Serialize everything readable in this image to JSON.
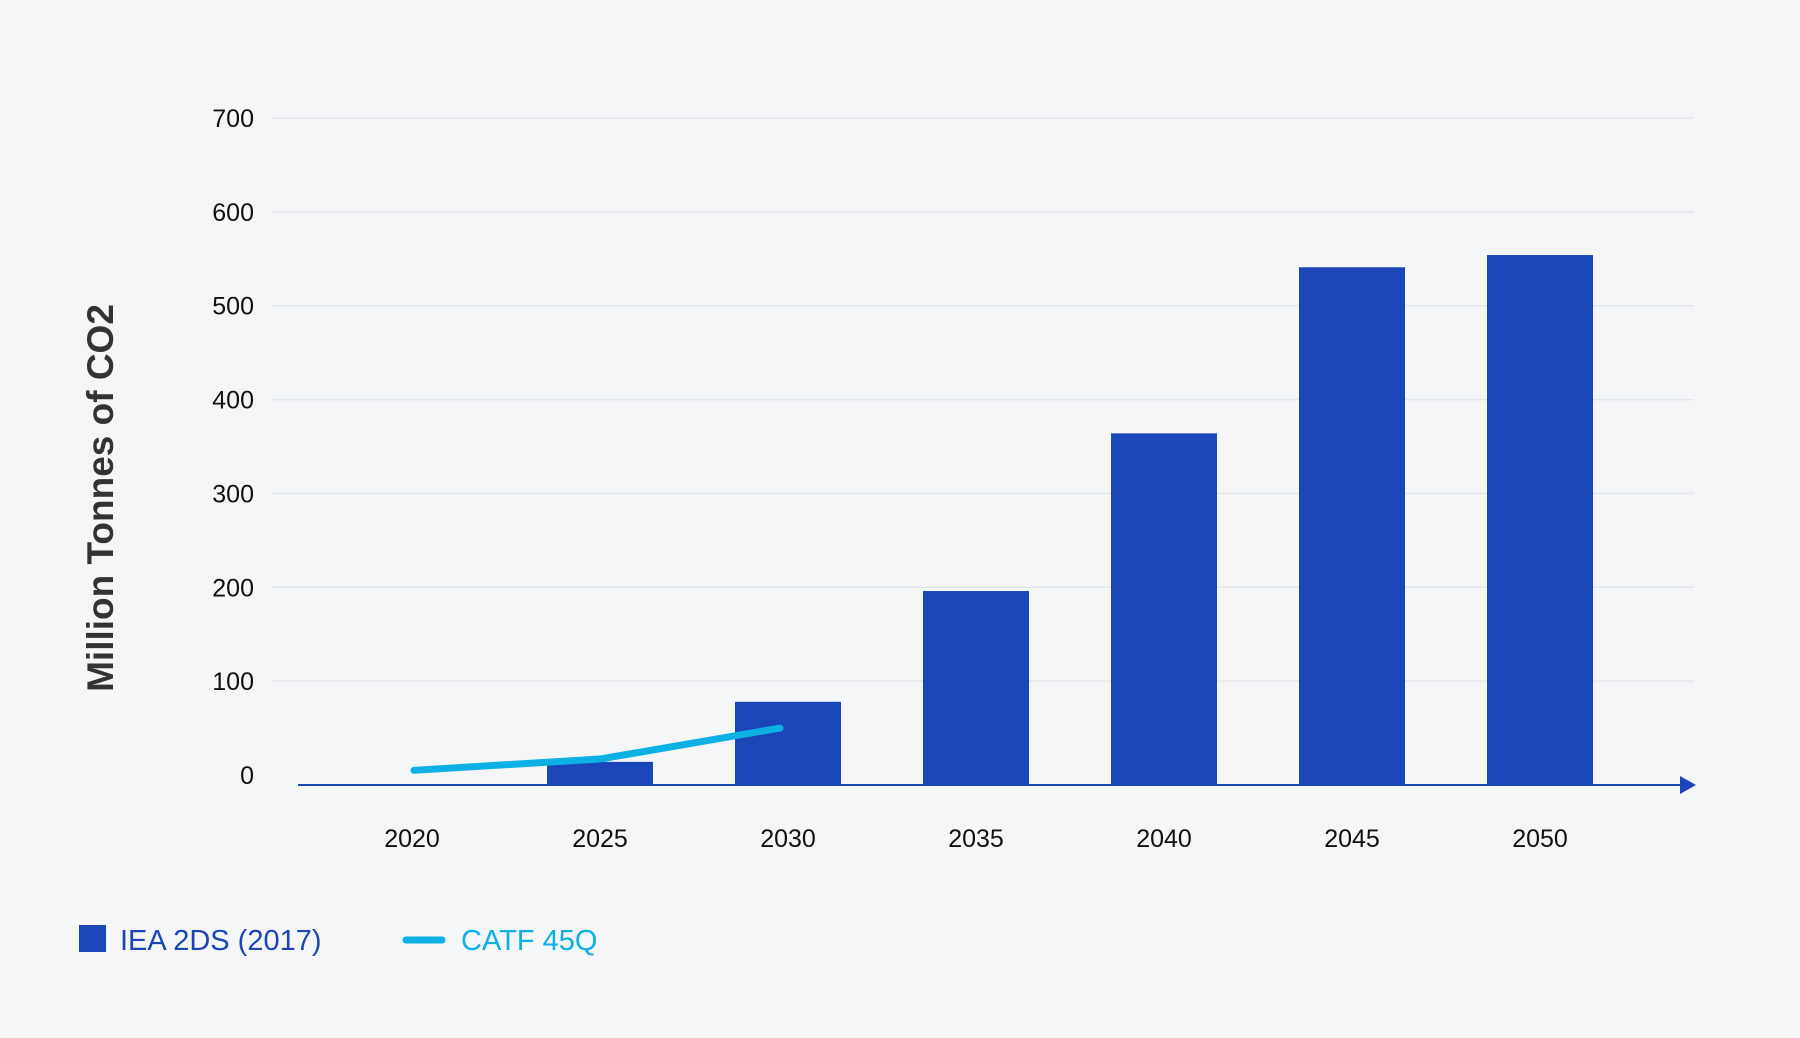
{
  "chart_data": {
    "type": "bar",
    "title": "",
    "xlabel": "",
    "ylabel": "Million Tonnes of CO2",
    "categories": [
      "2020",
      "2025",
      "2030",
      "2035",
      "2040",
      "2045",
      "2050"
    ],
    "yticks": [
      "0",
      "100",
      "200",
      "300",
      "400",
      "500",
      "600",
      "700"
    ],
    "ylim": [
      0,
      700
    ],
    "grid": true,
    "legend_position": "bottom-left",
    "series": [
      {
        "name": "IEA 2DS (2017)",
        "type": "bar",
        "color": "#1b46b8",
        "values": [
          0,
          14,
          78,
          196,
          364,
          541,
          554
        ]
      },
      {
        "name": "CATF 45Q",
        "type": "line",
        "color": "#0cb0e3",
        "x": [
          "2020",
          "2025",
          "2030"
        ],
        "values": [
          5,
          17,
          50
        ]
      }
    ]
  }
}
